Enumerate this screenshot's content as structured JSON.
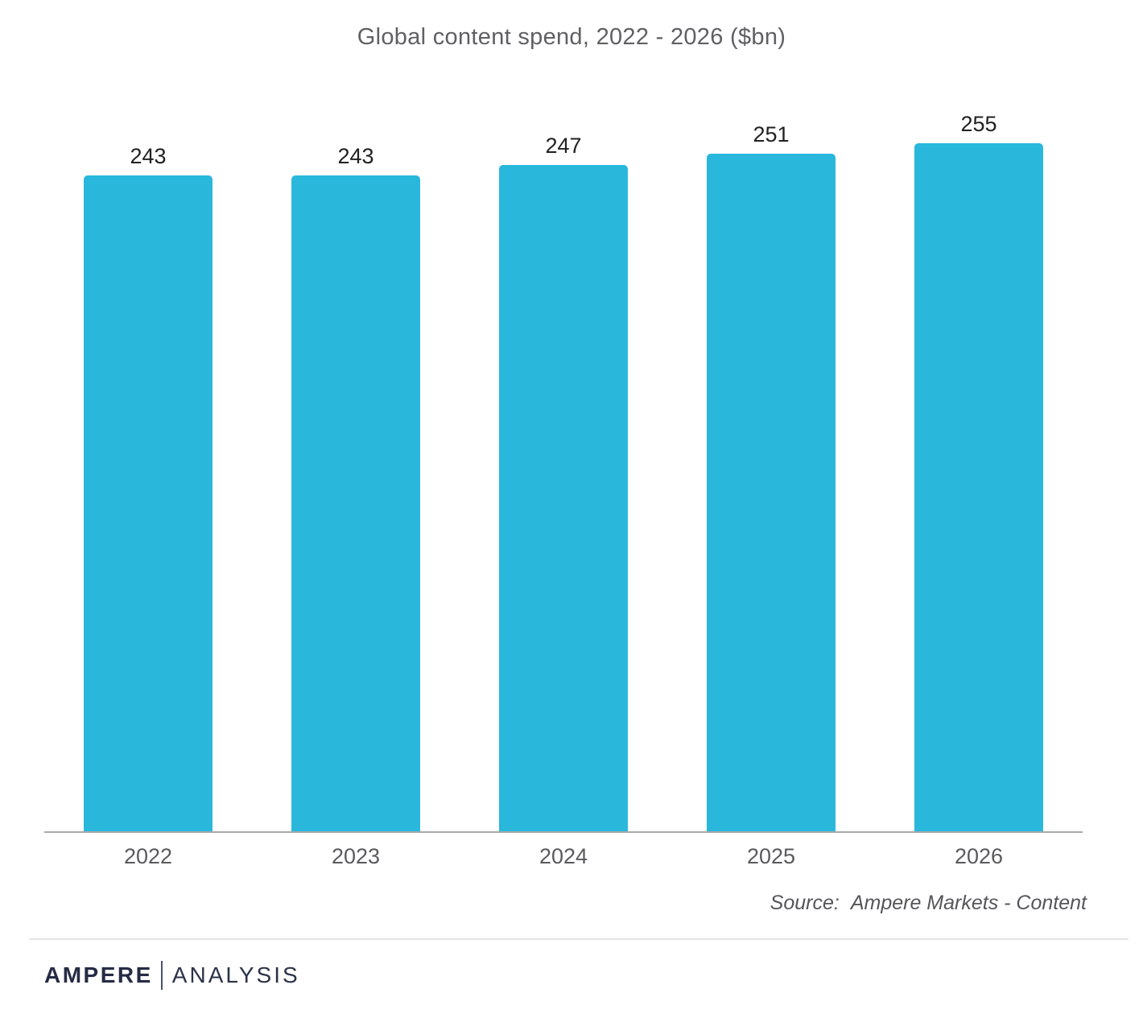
{
  "chart_data": {
    "type": "bar",
    "title": "Global content spend, 2022 - 2026 ($bn)",
    "categories": [
      "2022",
      "2023",
      "2024",
      "2025",
      "2026"
    ],
    "values": [
      243,
      243,
      247,
      251,
      255
    ],
    "xlabel": "",
    "ylabel": "",
    "ylim": [
      0,
      255
    ],
    "grid": false,
    "legend": "none",
    "value_labels": true,
    "bar_color": "#29b8dc"
  },
  "source": {
    "label": "Source:",
    "text": "Ampere Markets - Content"
  },
  "footer": {
    "brand_primary": "AMPERE",
    "brand_secondary": "ANALYSIS"
  },
  "colors": {
    "bar": "#29b8dc",
    "title_text": "#5f6063",
    "axis_line": "#a8a8a8",
    "value_text": "#212121",
    "category_text": "#595a5c",
    "source_text": "#55565a",
    "brand_navy": "#262b45",
    "divider": "#e5e5e5"
  }
}
